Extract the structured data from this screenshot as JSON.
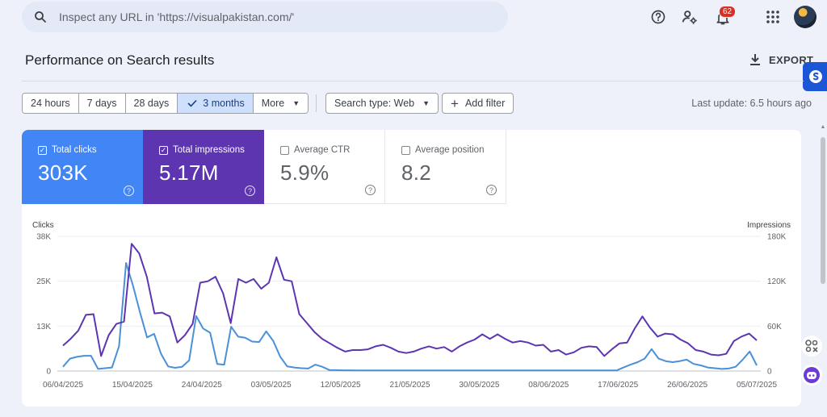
{
  "search": {
    "placeholder": "Inspect any URL in 'https://visualpakistan.com/'"
  },
  "header": {
    "notification_count": "62"
  },
  "page": {
    "title": "Performance on Search results",
    "export_label": "EXPORT"
  },
  "filters": {
    "date_ranges": [
      "24 hours",
      "7 days",
      "28 days",
      "3 months",
      "More"
    ],
    "active_range": "3 months",
    "search_type": "Search type: Web",
    "add_filter": "Add filter",
    "last_update": "Last update: 6.5 hours ago"
  },
  "metrics": [
    {
      "label": "Total clicks",
      "value": "303K",
      "checked": true,
      "color": "#4285f4"
    },
    {
      "label": "Total impressions",
      "value": "5.17M",
      "checked": true,
      "color": "#5e35b1"
    },
    {
      "label": "Average CTR",
      "value": "5.9%",
      "checked": false
    },
    {
      "label": "Average position",
      "value": "8.2",
      "checked": false
    }
  ],
  "chart_data": {
    "type": "line",
    "left_axis_title": "Clicks",
    "right_axis_title": "Impressions",
    "left_ticks": [
      "38K",
      "25K",
      "13K",
      "0"
    ],
    "right_ticks": [
      "180K",
      "120K",
      "60K",
      "0"
    ],
    "left_ylim": [
      0,
      38000
    ],
    "right_ylim": [
      0,
      180000
    ],
    "x_ticks": [
      "06/04/2025",
      "15/04/2025",
      "24/04/2025",
      "03/05/2025",
      "12/05/2025",
      "21/05/2025",
      "30/05/2025",
      "08/06/2025",
      "17/06/2025",
      "26/06/2025",
      "05/07/2025"
    ],
    "grid": true,
    "series": [
      {
        "name": "Clicks",
        "axis": "left",
        "color": "#4a90d9",
        "values": [
          1200,
          3500,
          4000,
          4300,
          4300,
          600,
          800,
          1000,
          7000,
          30500,
          24000,
          16500,
          9500,
          10500,
          4800,
          1300,
          900,
          1200,
          3000,
          15500,
          12000,
          10800,
          2000,
          1800,
          12500,
          9700,
          9400,
          8300,
          8200,
          11200,
          8500,
          4000,
          1300,
          1000,
          800,
          700,
          1800,
          1200,
          300,
          250,
          200,
          200,
          150,
          150,
          150,
          150,
          150,
          150,
          150,
          150,
          150,
          150,
          150,
          150,
          150,
          150,
          150,
          150,
          150,
          150,
          150,
          150,
          150,
          150,
          150,
          150,
          150,
          150,
          150,
          150,
          150,
          150,
          150,
          150,
          150,
          150,
          150,
          150,
          150,
          150,
          1000,
          1800,
          2500,
          3500,
          6200,
          3500,
          2800,
          2500,
          2800,
          3200,
          2000,
          1600,
          1000,
          800,
          600,
          700,
          1200,
          3200,
          5500,
          1600
        ]
      },
      {
        "name": "Impressions",
        "axis": "right",
        "color": "#5e35b1",
        "values": [
          34000,
          43000,
          54000,
          75000,
          76000,
          20000,
          48000,
          63000,
          66000,
          170000,
          157000,
          126000,
          77000,
          78000,
          73000,
          38000,
          48000,
          63000,
          118000,
          120000,
          126000,
          104000,
          64000,
          123000,
          118000,
          123000,
          110000,
          118000,
          152000,
          122000,
          120000,
          76000,
          64000,
          52000,
          43000,
          37000,
          31000,
          26000,
          28000,
          28000,
          29000,
          33000,
          35000,
          31000,
          26000,
          24000,
          26000,
          30000,
          33000,
          30000,
          32000,
          26000,
          33000,
          38000,
          42000,
          49000,
          43000,
          49000,
          43000,
          38000,
          40000,
          38000,
          34000,
          35000,
          26000,
          28000,
          22000,
          25000,
          31000,
          33000,
          32000,
          20000,
          29000,
          37000,
          38000,
          57000,
          73000,
          58000,
          46000,
          50000,
          49000,
          42000,
          37000,
          28000,
          26000,
          22000,
          21000,
          23000,
          40000,
          46000,
          50000,
          41000
        ]
      }
    ]
  }
}
